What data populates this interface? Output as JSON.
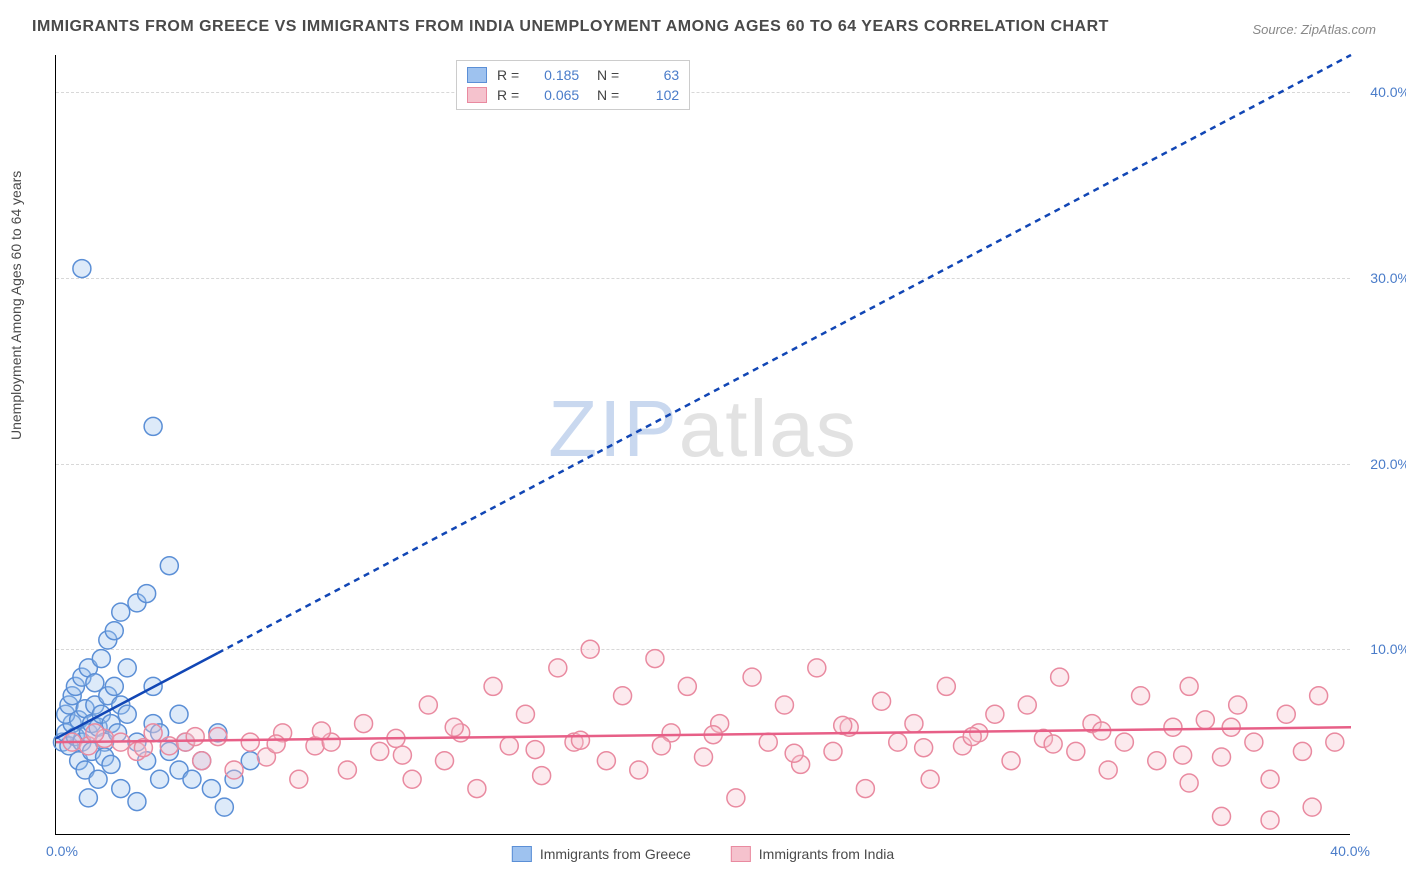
{
  "title": "IMMIGRANTS FROM GREECE VS IMMIGRANTS FROM INDIA UNEMPLOYMENT AMONG AGES 60 TO 64 YEARS CORRELATION CHART",
  "source": "Source: ZipAtlas.com",
  "ylabel": "Unemployment Among Ages 60 to 64 years",
  "watermark": {
    "prefix": "ZIP",
    "suffix": "atlas"
  },
  "chart": {
    "type": "scatter",
    "xlim": [
      0,
      40
    ],
    "ylim": [
      0,
      42
    ],
    "xticks": [
      {
        "v": 0,
        "l": "0.0%"
      },
      {
        "v": 40,
        "l": "40.0%"
      }
    ],
    "yticks": [
      {
        "v": 10,
        "l": "10.0%"
      },
      {
        "v": 20,
        "l": "20.0%"
      },
      {
        "v": 30,
        "l": "30.0%"
      },
      {
        "v": 40,
        "l": "40.0%"
      }
    ],
    "grid_color": "#d8d8d8",
    "background_color": "#ffffff",
    "axis_color": "#000000",
    "tick_font_color": "#4a7cc9",
    "marker_radius": 9,
    "series": [
      {
        "name": "Immigrants from Greece",
        "color_fill": "#9ec2ef",
        "color_stroke": "#5b8fd6",
        "r": 0.185,
        "n": 63,
        "trend": {
          "x1": 0,
          "y1": 5.2,
          "x2": 40,
          "y2": 42,
          "solid_until_x": 5.0,
          "color": "#1146b5",
          "width": 2.5,
          "dash": "6,5"
        },
        "points": [
          [
            0.2,
            5.0
          ],
          [
            0.3,
            5.5
          ],
          [
            0.4,
            4.8
          ],
          [
            0.5,
            6.0
          ],
          [
            0.3,
            6.5
          ],
          [
            0.6,
            5.3
          ],
          [
            0.4,
            7.0
          ],
          [
            0.7,
            6.2
          ],
          [
            0.5,
            7.5
          ],
          [
            0.8,
            5.0
          ],
          [
            0.6,
            8.0
          ],
          [
            0.9,
            6.8
          ],
          [
            0.7,
            4.0
          ],
          [
            1.0,
            5.5
          ],
          [
            0.8,
            8.5
          ],
          [
            1.1,
            6.0
          ],
          [
            0.9,
            3.5
          ],
          [
            1.2,
            7.0
          ],
          [
            1.0,
            9.0
          ],
          [
            1.3,
            5.8
          ],
          [
            1.1,
            4.5
          ],
          [
            1.4,
            6.5
          ],
          [
            1.2,
            8.2
          ],
          [
            1.5,
            5.0
          ],
          [
            1.3,
            3.0
          ],
          [
            1.6,
            7.5
          ],
          [
            1.4,
            9.5
          ],
          [
            1.7,
            6.0
          ],
          [
            1.5,
            4.2
          ],
          [
            1.8,
            8.0
          ],
          [
            1.6,
            10.5
          ],
          [
            1.9,
            5.5
          ],
          [
            1.7,
            3.8
          ],
          [
            2.0,
            7.0
          ],
          [
            1.8,
            11.0
          ],
          [
            2.2,
            6.5
          ],
          [
            2.0,
            12.0
          ],
          [
            2.5,
            5.0
          ],
          [
            2.2,
            9.0
          ],
          [
            2.8,
            4.0
          ],
          [
            2.5,
            12.5
          ],
          [
            3.0,
            6.0
          ],
          [
            2.8,
            13.0
          ],
          [
            3.2,
            5.5
          ],
          [
            3.0,
            8.0
          ],
          [
            3.5,
            4.5
          ],
          [
            3.2,
            3.0
          ],
          [
            3.8,
            6.5
          ],
          [
            3.5,
            14.5
          ],
          [
            4.0,
            5.0
          ],
          [
            3.8,
            3.5
          ],
          [
            4.5,
            4.0
          ],
          [
            4.2,
            3.0
          ],
          [
            5.0,
            5.5
          ],
          [
            4.8,
            2.5
          ],
          [
            5.5,
            3.0
          ],
          [
            5.2,
            1.5
          ],
          [
            6.0,
            4.0
          ],
          [
            1.0,
            2.0
          ],
          [
            2.0,
            2.5
          ],
          [
            0.8,
            30.5
          ],
          [
            3.0,
            22.0
          ],
          [
            2.5,
            1.8
          ]
        ]
      },
      {
        "name": "Immigrants from India",
        "color_fill": "#f5c2cd",
        "color_stroke": "#e98aa0",
        "r": 0.065,
        "n": 102,
        "trend": {
          "x1": 0,
          "y1": 5.0,
          "x2": 40,
          "y2": 5.8,
          "solid_until_x": 40,
          "color": "#e75f87",
          "width": 2.5,
          "dash": ""
        },
        "points": [
          [
            0.5,
            5.0
          ],
          [
            1.0,
            4.8
          ],
          [
            1.5,
            5.2
          ],
          [
            2.0,
            5.0
          ],
          [
            2.5,
            4.5
          ],
          [
            3.0,
            5.5
          ],
          [
            3.5,
            4.8
          ],
          [
            4.0,
            5.0
          ],
          [
            4.5,
            4.0
          ],
          [
            5.0,
            5.3
          ],
          [
            5.5,
            3.5
          ],
          [
            6.0,
            5.0
          ],
          [
            6.5,
            4.2
          ],
          [
            7.0,
            5.5
          ],
          [
            7.5,
            3.0
          ],
          [
            8.0,
            4.8
          ],
          [
            8.5,
            5.0
          ],
          [
            9.0,
            3.5
          ],
          [
            9.5,
            6.0
          ],
          [
            10.0,
            4.5
          ],
          [
            10.5,
            5.2
          ],
          [
            11.0,
            3.0
          ],
          [
            11.5,
            7.0
          ],
          [
            12.0,
            4.0
          ],
          [
            12.5,
            5.5
          ],
          [
            13.0,
            2.5
          ],
          [
            13.5,
            8.0
          ],
          [
            14.0,
            4.8
          ],
          [
            14.5,
            6.5
          ],
          [
            15.0,
            3.2
          ],
          [
            15.5,
            9.0
          ],
          [
            16.0,
            5.0
          ],
          [
            16.5,
            10.0
          ],
          [
            17.0,
            4.0
          ],
          [
            17.5,
            7.5
          ],
          [
            18.0,
            3.5
          ],
          [
            18.5,
            9.5
          ],
          [
            19.0,
            5.5
          ],
          [
            19.5,
            8.0
          ],
          [
            20.0,
            4.2
          ],
          [
            20.5,
            6.0
          ],
          [
            21.0,
            2.0
          ],
          [
            21.5,
            8.5
          ],
          [
            22.0,
            5.0
          ],
          [
            22.5,
            7.0
          ],
          [
            23.0,
            3.8
          ],
          [
            23.5,
            9.0
          ],
          [
            24.0,
            4.5
          ],
          [
            24.5,
            5.8
          ],
          [
            25.0,
            2.5
          ],
          [
            25.5,
            7.2
          ],
          [
            26.0,
            5.0
          ],
          [
            26.5,
            6.0
          ],
          [
            27.0,
            3.0
          ],
          [
            27.5,
            8.0
          ],
          [
            28.0,
            4.8
          ],
          [
            28.5,
            5.5
          ],
          [
            29.0,
            6.5
          ],
          [
            29.5,
            4.0
          ],
          [
            30.0,
            7.0
          ],
          [
            30.5,
            5.2
          ],
          [
            31.0,
            8.5
          ],
          [
            31.5,
            4.5
          ],
          [
            32.0,
            6.0
          ],
          [
            32.5,
            3.5
          ],
          [
            33.0,
            5.0
          ],
          [
            33.5,
            7.5
          ],
          [
            34.0,
            4.0
          ],
          [
            34.5,
            5.8
          ],
          [
            35.0,
            2.8
          ],
          [
            35.5,
            6.2
          ],
          [
            36.0,
            4.2
          ],
          [
            36.5,
            7.0
          ],
          [
            37.0,
            5.0
          ],
          [
            37.5,
            3.0
          ],
          [
            38.0,
            6.5
          ],
          [
            38.5,
            4.5
          ],
          [
            39.0,
            7.5
          ],
          [
            39.5,
            5.0
          ],
          [
            1.2,
            5.5
          ],
          [
            2.7,
            4.7
          ],
          [
            4.3,
            5.3
          ],
          [
            6.8,
            4.9
          ],
          [
            8.2,
            5.6
          ],
          [
            10.7,
            4.3
          ],
          [
            12.3,
            5.8
          ],
          [
            14.8,
            4.6
          ],
          [
            16.2,
            5.1
          ],
          [
            18.7,
            4.8
          ],
          [
            20.3,
            5.4
          ],
          [
            22.8,
            4.4
          ],
          [
            24.3,
            5.9
          ],
          [
            26.8,
            4.7
          ],
          [
            28.3,
            5.3
          ],
          [
            30.8,
            4.9
          ],
          [
            32.3,
            5.6
          ],
          [
            34.8,
            4.3
          ],
          [
            36.3,
            5.8
          ],
          [
            38.8,
            1.5
          ],
          [
            36.0,
            1.0
          ],
          [
            37.5,
            0.8
          ],
          [
            35.0,
            8.0
          ]
        ]
      }
    ],
    "legend_bottom": [
      {
        "label": "Immigrants from Greece",
        "fill": "#9ec2ef",
        "stroke": "#5b8fd6"
      },
      {
        "label": "Immigrants from India",
        "fill": "#f5c2cd",
        "stroke": "#e98aa0"
      }
    ]
  }
}
